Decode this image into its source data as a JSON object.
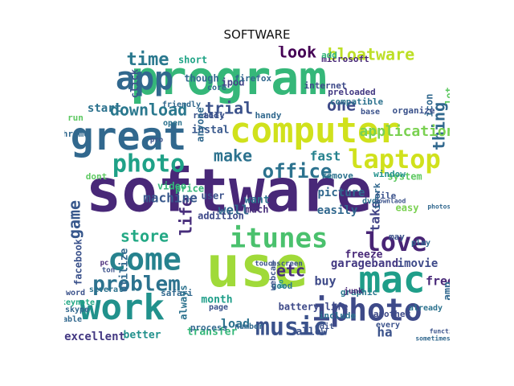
{
  "title": "SOFTWARE",
  "words": [
    {
      "text": "software",
      "color": "#482878"
    },
    {
      "text": "program",
      "color": "#35b779"
    },
    {
      "text": "use",
      "color": "#a0da39"
    },
    {
      "text": "computer",
      "color": "#d0e11c"
    },
    {
      "text": "mac",
      "color": "#1f9e89"
    },
    {
      "text": "great",
      "color": "#31688e"
    },
    {
      "text": "work",
      "color": "#21918c"
    },
    {
      "text": "come",
      "color": "#26828e"
    },
    {
      "text": "iphoto",
      "color": "#3e4a89"
    },
    {
      "text": "app",
      "color": "#31688e"
    },
    {
      "text": "itunes",
      "color": "#4ac16d"
    },
    {
      "text": "love",
      "color": "#482475"
    },
    {
      "text": "laptop",
      "color": "#d0e11c"
    },
    {
      "text": "photo",
      "color": "#1fa187"
    },
    {
      "text": "music",
      "color": "#3b528b"
    },
    {
      "text": "problem",
      "color": "#2c728e"
    },
    {
      "text": "office",
      "color": "#2c728e"
    },
    {
      "text": "time",
      "color": "#2a788e"
    },
    {
      "text": "download",
      "color": "#2a788e"
    },
    {
      "text": "store",
      "color": "#22a884"
    },
    {
      "text": "bloatware",
      "color": "#bddf26"
    },
    {
      "text": "thing",
      "color": "#31688e"
    },
    {
      "text": "one",
      "color": "#3e4a89"
    },
    {
      "text": "trial",
      "color": "#3b528b"
    },
    {
      "text": "game",
      "color": "#38588c"
    },
    {
      "text": "life",
      "color": "#472d7b"
    },
    {
      "text": "make",
      "color": "#2c728e"
    },
    {
      "text": "look",
      "color": "#440154"
    },
    {
      "text": "etc",
      "color": "#472d7b"
    },
    {
      "text": "ha",
      "color": "#3b528b"
    },
    {
      "text": "application",
      "color": "#7ad151"
    },
    {
      "text": "short",
      "color": "#20a486"
    },
    {
      "text": "garageband",
      "color": "#443983"
    },
    {
      "text": "imovie",
      "color": "#3e4a89"
    },
    {
      "text": "machine",
      "color": "#38588c"
    },
    {
      "text": "fast",
      "color": "#26828e"
    },
    {
      "text": "easily",
      "color": "#31688e"
    },
    {
      "text": "take",
      "color": "#414487"
    },
    {
      "text": "system",
      "color": "#5ec962"
    },
    {
      "text": "picture",
      "color": "#31688e"
    },
    {
      "text": "well",
      "color": "#31688e"
    },
    {
      "text": "load",
      "color": "#2c728e"
    },
    {
      "text": "transfer",
      "color": "#35b779"
    },
    {
      "text": "excellent",
      "color": "#443983"
    },
    {
      "text": "better",
      "color": "#21918c"
    },
    {
      "text": "allow",
      "color": "#3b528b"
    },
    {
      "text": "freeze",
      "color": "#482878"
    },
    {
      "text": "month",
      "color": "#1f9e89"
    },
    {
      "text": "battery life",
      "color": "#3e4a89"
    },
    {
      "text": "instal",
      "color": "#38588c"
    },
    {
      "text": "addition",
      "color": "#3e4a89"
    },
    {
      "text": "user",
      "color": "#3b528b"
    },
    {
      "text": "want",
      "color": "#2c728e"
    },
    {
      "text": "much",
      "color": "#472d7b"
    },
    {
      "text": "buy",
      "color": "#3e4a89"
    },
    {
      "text": "free",
      "color": "#482878"
    },
    {
      "text": "amp",
      "color": "#31688e"
    },
    {
      "text": "easy",
      "color": "#7ad151"
    },
    {
      "text": "file",
      "color": "#3b528b"
    },
    {
      "text": "window",
      "color": "#21918c"
    },
    {
      "text": "remove",
      "color": "#2c728e"
    },
    {
      "text": "handy",
      "color": "#31688e"
    },
    {
      "text": "tool",
      "color": "#3b528b"
    },
    {
      "text": "preloaded",
      "color": "#443983"
    },
    {
      "text": "microsoft",
      "color": "#482878"
    },
    {
      "text": "ipod",
      "color": "#414487"
    },
    {
      "text": "start",
      "color": "#2c728e"
    },
    {
      "text": "price",
      "color": "#35b779"
    },
    {
      "text": "video",
      "color": "#35b779"
    },
    {
      "text": "good",
      "color": "#2a788e"
    },
    {
      "text": "safari",
      "color": "#31688e"
    },
    {
      "text": "graphic",
      "color": "#2a788e"
    },
    {
      "text": "another",
      "color": "#3e4a89"
    },
    {
      "text": "include",
      "color": "#2c728e"
    },
    {
      "text": "junk",
      "color": "#482878"
    },
    {
      "text": "every",
      "color": "#3b528b"
    },
    {
      "text": "edit",
      "color": "#3b528b"
    },
    {
      "text": "play",
      "color": "#31688e"
    },
    {
      "text": "utilize",
      "color": "#31688e"
    },
    {
      "text": "facebook",
      "color": "#3b528b"
    },
    {
      "text": "always",
      "color": "#2c728e"
    },
    {
      "text": "process",
      "color": "#31688e"
    },
    {
      "text": "though",
      "color": "#31688e"
    },
    {
      "text": "friendly",
      "color": "#31688e"
    },
    {
      "text": "click",
      "color": "#3b528b"
    },
    {
      "text": "run",
      "color": "#5ec962"
    },
    {
      "text": "dont",
      "color": "#5ec962"
    },
    {
      "text": "lot",
      "color": "#5ec962"
    },
    {
      "text": "icon",
      "color": "#31688e"
    },
    {
      "text": "may",
      "color": "#3b528b"
    },
    {
      "text": "add",
      "color": "#35b779"
    },
    {
      "text": "internet",
      "color": "#3e4a89"
    },
    {
      "text": "compatible",
      "color": "#2c728e"
    },
    {
      "text": "firefox",
      "color": "#31688e"
    },
    {
      "text": "really",
      "color": "#3b528b"
    },
    {
      "text": "anyone",
      "color": "#31688e"
    },
    {
      "text": "organize",
      "color": "#3b528b"
    },
    {
      "text": "iwork",
      "color": "#31688e"
    },
    {
      "text": "able",
      "color": "#31688e"
    },
    {
      "text": "skype",
      "color": "#31688e"
    },
    {
      "text": "keynote",
      "color": "#22a884"
    },
    {
      "text": "already",
      "color": "#2c728e"
    },
    {
      "text": "word",
      "color": "#3b528b"
    },
    {
      "text": "page",
      "color": "#3b528b"
    },
    {
      "text": "number",
      "color": "#31688e"
    },
    {
      "text": "base",
      "color": "#3b528b"
    },
    {
      "text": "open",
      "color": "#2c728e"
    },
    {
      "text": "core",
      "color": "#31688e"
    },
    {
      "text": "dvd",
      "color": "#2c728e"
    },
    {
      "text": "chrome",
      "color": "#31688e"
    },
    {
      "text": "several",
      "color": "#2c728e"
    },
    {
      "text": "ton",
      "color": "#3b528b"
    },
    {
      "text": "pc",
      "color": "#482878"
    },
    {
      "text": "go",
      "color": "#21918c"
    },
    {
      "text": "webcam",
      "color": "#3b528b"
    },
    {
      "text": "touchscreen",
      "color": "#3b528b"
    },
    {
      "text": "downlaod",
      "color": "#3b528b"
    },
    {
      "text": "photoshop",
      "color": "#31688e"
    },
    {
      "text": "sometimes",
      "color": "#31688e"
    },
    {
      "text": "function",
      "color": "#3b528b"
    },
    {
      "text": "pro",
      "color": "#3b528b"
    },
    {
      "text": "dev",
      "color": "#3b528b"
    },
    {
      "text": "beautifully",
      "color": "#3b528b"
    },
    {
      "text": "quick",
      "color": "#3b528b"
    },
    {
      "text": "home",
      "color": "#3b528b"
    },
    {
      "text": "management",
      "color": "#3b528b"
    }
  ]
}
